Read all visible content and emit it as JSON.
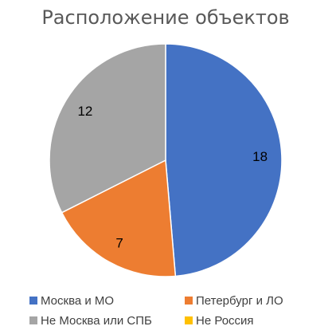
{
  "chart_data": {
    "type": "pie",
    "title": "Расположение объектов",
    "start_angle_deg": 0,
    "direction": "clockwise",
    "legend_position": "bottom",
    "slices": [
      {
        "label": "Москва и МО",
        "value": 18,
        "data_label": "18",
        "color": "#4472C4"
      },
      {
        "label": "Петербург и ЛО",
        "value": 7,
        "data_label": "7",
        "color": "#ED7D31"
      },
      {
        "label": "Не Москва или СПБ",
        "value": 12,
        "data_label": "12",
        "color": "#A5A5A5"
      },
      {
        "label": "Не Россия",
        "value": 0,
        "data_label": "",
        "color": "#FFC000"
      }
    ]
  }
}
